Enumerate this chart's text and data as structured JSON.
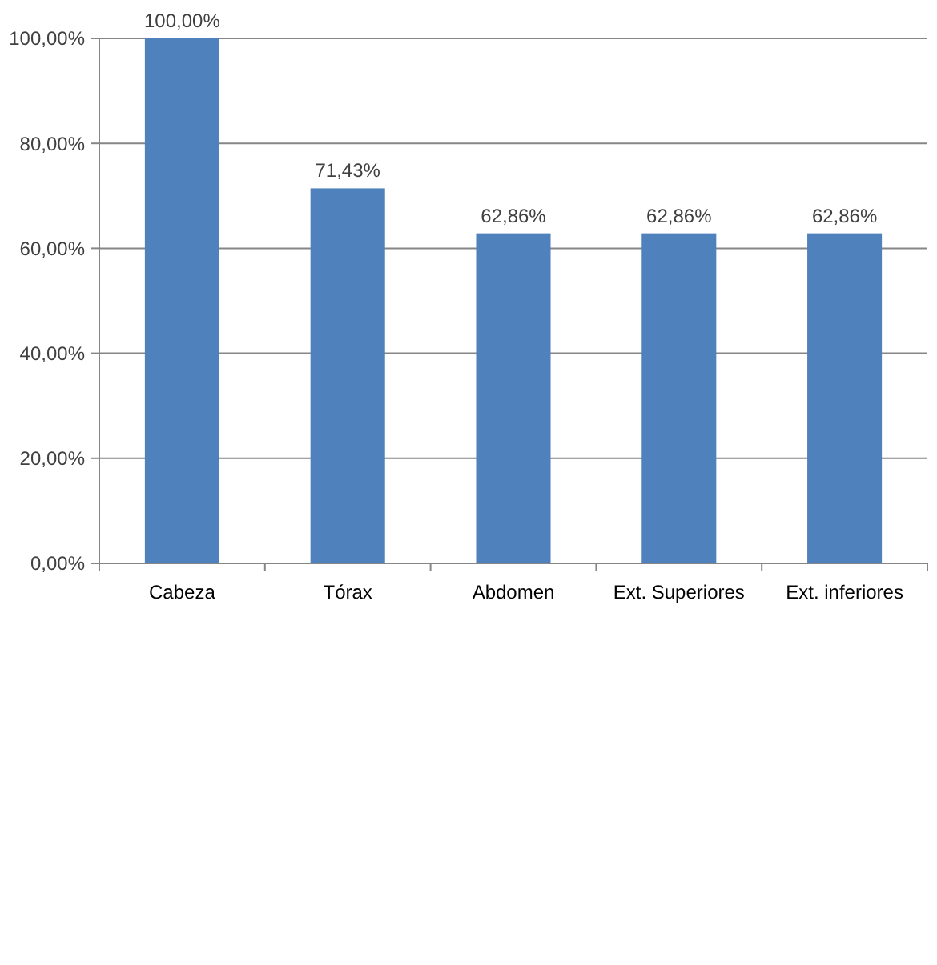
{
  "chart_data": {
    "type": "bar",
    "categories": [
      "Cabeza",
      "Tórax",
      "Abdomen",
      "Ext. Superiores",
      "Ext. inferiores"
    ],
    "values": [
      100,
      71.43,
      62.86,
      62.86,
      62.86
    ],
    "color": "#4f81bd",
    "value_labels": [
      "100,00%",
      "71,43%",
      "62,86%",
      "62,86%",
      "62,86%"
    ],
    "ylim": [
      0,
      100
    ],
    "yticks": [
      {
        "value": 0,
        "label": "0,00%"
      },
      {
        "value": 20,
        "label": "20,00%"
      },
      {
        "value": 40,
        "label": "40,00%"
      },
      {
        "value": 60,
        "label": "60,00%"
      },
      {
        "value": 80,
        "label": "80,00%"
      },
      {
        "value": 100,
        "label": "100,00%"
      }
    ],
    "grid": "y"
  }
}
